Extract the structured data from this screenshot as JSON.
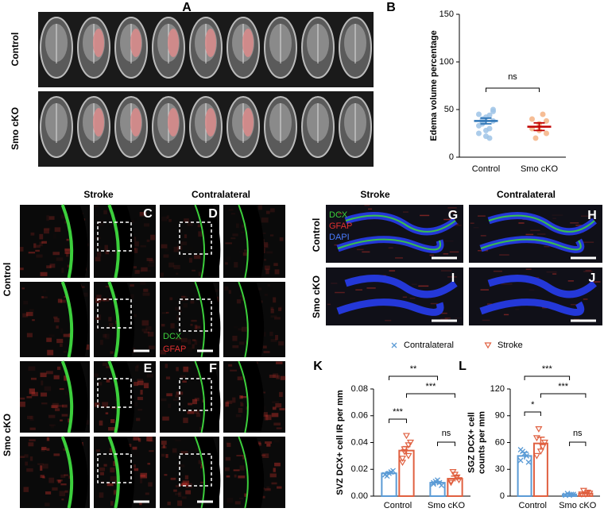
{
  "panel_letters": [
    "A",
    "B",
    "C",
    "D",
    "E",
    "F",
    "G",
    "H",
    "I",
    "J",
    "K",
    "L"
  ],
  "row_labels": [
    "Control",
    "Smo cKO"
  ],
  "column_labels": [
    "Stroke",
    "Contralateral"
  ],
  "stain_labels": [
    "DCX",
    "GFAP",
    "DAPI"
  ],
  "chart_data": [
    {
      "type": "dot",
      "categories": [
        "Control",
        "Smo cKO"
      ],
      "ylabel": [
        "Edema volume percentage"
      ],
      "ylim": [
        0,
        150
      ],
      "yticks": [
        0,
        50,
        100,
        150
      ],
      "values": [
        38,
        32
      ],
      "errors": [
        3,
        4
      ],
      "points": [
        [
          45,
          42,
          48,
          36,
          30,
          25,
          22,
          38,
          40,
          44,
          33,
          28,
          50,
          35,
          20
        ],
        [
          40,
          35,
          25,
          20,
          45,
          30,
          28,
          38
        ]
      ],
      "point_colors": [
        "#9dc3e6",
        "#f4b183"
      ],
      "mean_colors": [
        "#2e75b6",
        "#c00000"
      ],
      "annotations": [
        "ns"
      ]
    },
    {
      "type": "bar",
      "categories": [
        "Control",
        "Smo cKO"
      ],
      "ylabel": [
        "SVZ DCX+ cell IR per mm"
      ],
      "ylim": [
        0,
        0.08
      ],
      "yticks": [
        {
          "value": 0,
          "label": "0.00"
        },
        0.02,
        0.04,
        0.06,
        0.08
      ],
      "series": [
        {
          "name": "Contralateral",
          "color": "#5b9bd5",
          "marker": "x",
          "values": [
            0.017,
            0.01
          ],
          "errors": [
            0.001,
            0.001
          ],
          "points": [
            [
              0.016,
              0.018,
              0.015,
              0.019,
              0.017,
              0.016,
              0.018
            ],
            [
              0.009,
              0.01,
              0.011,
              0.008,
              0.012,
              0.01
            ]
          ]
        },
        {
          "name": "Stroke",
          "color": "#e06040",
          "marker": "triangle-down",
          "values": [
            0.034,
            0.013
          ],
          "errors": [
            0.003,
            0.002
          ],
          "points": [
            [
              0.025,
              0.03,
              0.035,
              0.04,
              0.045,
              0.028,
              0.038,
              0.033
            ],
            [
              0.01,
              0.014,
              0.018,
              0.012,
              0.016,
              0.011
            ]
          ]
        }
      ],
      "annotations": [
        "***",
        "**",
        "***",
        "ns"
      ]
    },
    {
      "type": "bar",
      "categories": [
        "Control",
        "Smo cKO"
      ],
      "ylabel": [
        "SGZ DCX+ cell",
        "counts per mm"
      ],
      "ylim": [
        0,
        120
      ],
      "yticks": [
        0,
        30,
        60,
        90,
        120
      ],
      "series": [
        {
          "color": "#5b9bd5",
          "marker": "x",
          "values": [
            45,
            2
          ],
          "errors": [
            4,
            1
          ],
          "points": [
            [
              40,
              45,
              50,
              38,
              48,
              52
            ],
            [
              1,
              2,
              3,
              2,
              1
            ]
          ]
        },
        {
          "color": "#e06040",
          "marker": "triangle-down",
          "values": [
            59,
            3
          ],
          "errors": [
            7,
            1
          ],
          "points": [
            [
              45,
              55,
              75,
              60,
              50,
              65
            ],
            [
              2,
              4,
              6,
              3,
              2
            ]
          ]
        }
      ],
      "annotations": [
        "*",
        "***",
        "***",
        "ns"
      ]
    }
  ]
}
